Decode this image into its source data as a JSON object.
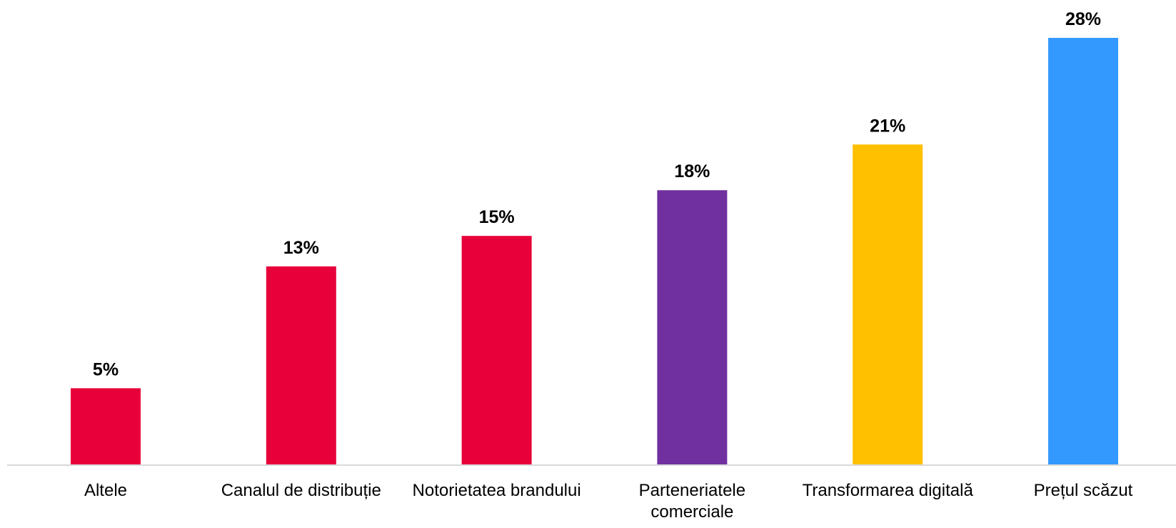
{
  "chart_data": {
    "type": "bar",
    "categories": [
      "Altele",
      "Canalul de distribuție",
      "Notorietatea brandului",
      "Parteneriatele comerciale",
      "Transformarea digitală",
      "Prețul scăzut"
    ],
    "values": [
      5,
      13,
      15,
      18,
      21,
      28
    ],
    "value_labels": [
      "5%",
      "13%",
      "15%",
      "18%",
      "21%",
      "28%"
    ],
    "colors": [
      "#e8003a",
      "#e8003a",
      "#e8003a",
      "#7030a0",
      "#ffc000",
      "#3399ff"
    ]
  }
}
